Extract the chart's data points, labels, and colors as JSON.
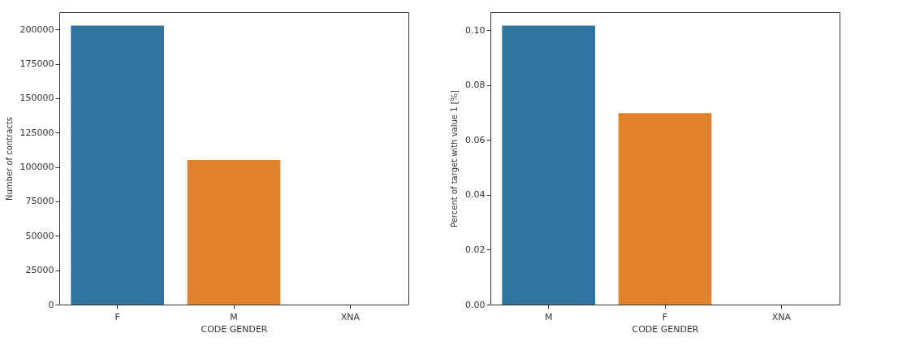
{
  "chart_data": [
    {
      "type": "bar",
      "xlabel": "CODE GENDER",
      "ylabel": "Number of contracts",
      "categories": [
        "F",
        "M",
        "XNA"
      ],
      "values": [
        202800,
        105100,
        0
      ],
      "colors": [
        "#3274a1",
        "#e1812c",
        "#3a923a"
      ],
      "ylim": [
        0,
        212500
      ],
      "yticks": [
        0,
        25000,
        50000,
        75000,
        100000,
        125000,
        150000,
        175000,
        200000
      ],
      "grid": false,
      "legend": false
    },
    {
      "type": "bar",
      "xlabel": "CODE GENDER",
      "ylabel": "Percent of target with value 1 [%]",
      "categories": [
        "M",
        "F",
        "XNA"
      ],
      "values": [
        0.1017,
        0.0698,
        0
      ],
      "colors": [
        "#3274a1",
        "#e1812c",
        "#3a923a"
      ],
      "ylim": [
        0,
        0.1066
      ],
      "yticks": [
        {
          "value": 0,
          "label": "0.00"
        },
        0.02,
        0.04,
        0.06,
        0.08,
        {
          "value": 0.1,
          "label": "0.10"
        }
      ],
      "grid": false,
      "legend": false
    }
  ]
}
